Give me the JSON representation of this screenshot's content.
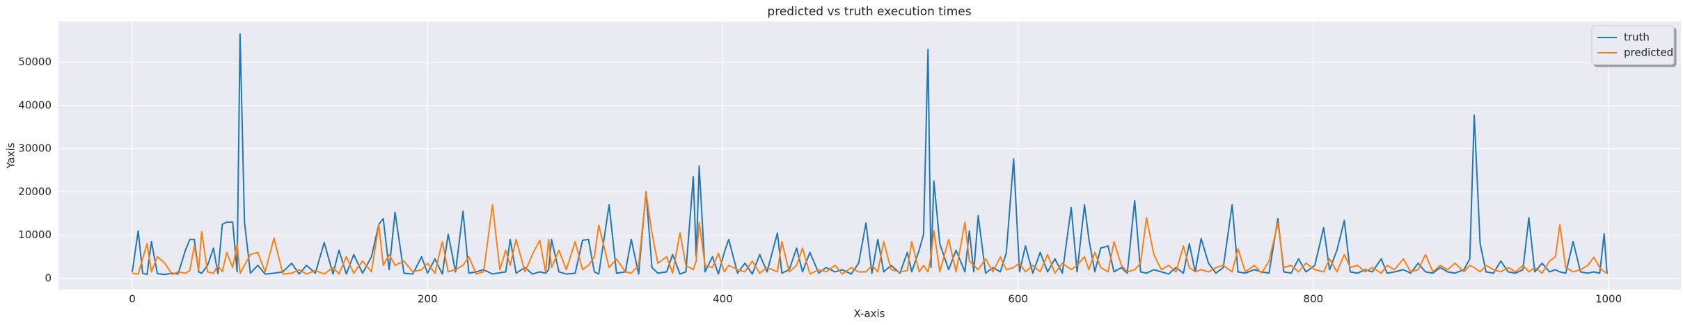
{
  "chart_data": {
    "type": "line",
    "title": "predicted vs truth execution times",
    "xlabel": "X-axis",
    "ylabel": "Yaxis",
    "xlim": [
      -50,
      1049
    ],
    "ylim": [
      -2600,
      59400
    ],
    "xticks": [
      0,
      200,
      400,
      600,
      800,
      1000
    ],
    "yticks": [
      0,
      10000,
      20000,
      30000,
      40000,
      50000
    ],
    "grid": true,
    "legend": "upper right",
    "x": [
      0,
      4,
      7,
      10,
      13,
      17,
      22,
      27,
      31,
      36,
      39,
      42,
      45,
      47,
      51,
      55,
      58,
      61,
      64,
      68,
      71,
      73,
      76,
      80,
      85,
      90,
      96,
      102,
      108,
      113,
      118,
      124,
      130,
      136,
      140,
      145,
      150,
      156,
      162,
      167,
      170,
      174,
      178,
      184,
      190,
      196,
      200,
      205,
      210,
      214,
      219,
      224,
      228,
      233,
      238,
      244,
      249,
      253,
      256,
      260,
      266,
      271,
      276,
      280,
      282,
      284,
      289,
      294,
      300,
      305,
      309,
      313,
      316,
      323,
      328,
      334,
      338,
      343,
      348,
      352,
      356,
      362,
      366,
      371,
      375,
      380,
      382,
      384,
      388,
      393,
      397,
      401,
      404,
      410,
      415,
      420,
      425,
      430,
      437,
      440,
      445,
      450,
      454,
      459,
      465,
      470,
      476,
      481,
      487,
      492,
      497,
      501,
      505,
      509,
      514,
      520,
      525,
      528,
      533,
      536,
      539,
      541,
      543,
      547,
      553,
      558,
      564,
      567,
      570,
      573,
      578,
      583,
      588,
      592,
      597,
      601,
      605,
      610,
      615,
      620,
      625,
      630,
      636,
      640,
      645,
      648,
      652,
      656,
      661,
      665,
      670,
      674,
      679,
      683,
      687,
      692,
      697,
      702,
      707,
      712,
      716,
      720,
      724,
      729,
      734,
      739,
      745,
      749,
      754,
      760,
      765,
      770,
      776,
      780,
      785,
      790,
      795,
      801,
      807,
      811,
      816,
      821,
      825,
      830,
      835,
      840,
      846,
      850,
      855,
      861,
      866,
      871,
      876,
      881,
      886,
      891,
      896,
      902,
      906,
      909,
      913,
      917,
      922,
      927,
      932,
      937,
      942,
      946,
      950,
      955,
      960,
      964,
      967,
      971,
      976,
      981,
      986,
      990,
      994,
      997,
      999
    ],
    "series": [
      {
        "name": "truth",
        "color": "#1f77b4",
        "values": [
          1500,
          11000,
          1200,
          900,
          8500,
          1100,
          900,
          1200,
          1000,
          6500,
          9000,
          9000,
          1500,
          1200,
          3000,
          7000,
          1100,
          12500,
          13000,
          13000,
          1500,
          56500,
          13000,
          1200,
          3000,
          1000,
          1200,
          1500,
          3500,
          1000,
          3000,
          1200,
          8300,
          1000,
          6500,
          1000,
          5500,
          1200,
          5000,
          12500,
          13800,
          2000,
          15300,
          1200,
          1000,
          5000,
          1200,
          4500,
          1000,
          10200,
          1500,
          15500,
          1200,
          1500,
          2000,
          1000,
          1300,
          1500,
          9000,
          1200,
          2500,
          1000,
          1500,
          1200,
          2000,
          9000,
          1500,
          1000,
          1200,
          8800,
          9000,
          1500,
          1000,
          17000,
          1200,
          1500,
          9000,
          1000,
          20000,
          2500,
          1200,
          1500,
          5500,
          1000,
          1500,
          23500,
          5000,
          26000,
          1500,
          5000,
          1000,
          6000,
          9000,
          1200,
          3500,
          1000,
          5500,
          1500,
          10500,
          1200,
          2000,
          7000,
          1500,
          6000,
          1200,
          2500,
          1500,
          2000,
          1000,
          3500,
          12800,
          1200,
          9000,
          1500,
          3000,
          1200,
          6000,
          1500,
          6500,
          10200,
          53000,
          2500,
          22500,
          8000,
          2000,
          6500,
          1500,
          11000,
          1500,
          14500,
          1200,
          2500,
          1500,
          5800,
          27600,
          1500,
          7500,
          1200,
          6000,
          1500,
          4500,
          1200,
          16400,
          1500,
          17000,
          9000,
          1500,
          7000,
          7500,
          1500,
          2500,
          1200,
          18000,
          1500,
          1200,
          2000,
          1500,
          1000,
          2500,
          1200,
          8000,
          1500,
          9200,
          3500,
          1200,
          2500,
          17000,
          1500,
          1200,
          2000,
          1500,
          1200,
          13800,
          1500,
          1200,
          4500,
          1500,
          3000,
          11700,
          2000,
          6500,
          13400,
          1500,
          1200,
          2000,
          1500,
          4500,
          1200,
          1500,
          2000,
          1200,
          3500,
          1500,
          1200,
          2500,
          1500,
          1200,
          2000,
          4500,
          37800,
          8000,
          1500,
          1200,
          4000,
          1500,
          1200,
          2000,
          14000,
          1500,
          3500,
          1500,
          2000,
          1500,
          1200,
          8500,
          1500,
          1200,
          1500,
          1200,
          10300,
          1000
        ]
      },
      {
        "name": "predicted",
        "color": "#ff7f0e",
        "values": [
          1200,
          1000,
          4500,
          8000,
          1500,
          5000,
          3500,
          900,
          1500,
          1200,
          1800,
          7500,
          2000,
          10800,
          1500,
          1200,
          3000,
          1500,
          6000,
          2500,
          8000,
          1200,
          3000,
          5500,
          6000,
          1500,
          9300,
          1000,
          1200,
          2000,
          1000,
          1800,
          1000,
          2500,
          1000,
          5000,
          1200,
          4000,
          1500,
          12400,
          3000,
          5500,
          3000,
          4000,
          1500,
          2000,
          3500,
          1200,
          8500,
          1500,
          2000,
          3000,
          5000,
          1000,
          1500,
          17000,
          2000,
          6500,
          3000,
          9000,
          1500,
          5500,
          8800,
          1500,
          9000,
          2500,
          6500,
          2000,
          8500,
          2000,
          3000,
          5000,
          12300,
          2500,
          4500,
          1500,
          1200,
          3000,
          19800,
          10500,
          3500,
          5000,
          1200,
          10500,
          3000,
          2000,
          4000,
          13000,
          3000,
          2500,
          5800,
          1500,
          3000,
          2000,
          1500,
          4000,
          1200,
          2500,
          1500,
          8500,
          1500,
          3000,
          7000,
          1000,
          2000,
          1500,
          3000,
          1000,
          2500,
          1500,
          1500,
          3000,
          1500,
          8500,
          2000,
          1500,
          1800,
          8500,
          1500,
          3000,
          1500,
          5000,
          11000,
          1500,
          9000,
          1500,
          13000,
          4000,
          3000,
          2000,
          4500,
          1500,
          5000,
          2000,
          2500,
          3500,
          1500,
          3000,
          1500,
          5500,
          1200,
          3500,
          2000,
          3000,
          5000,
          2000,
          6000,
          2500,
          1500,
          8500,
          3000,
          1500,
          2000,
          3500,
          14000,
          5500,
          2000,
          3000,
          1500,
          7500,
          2500,
          1500,
          2000,
          1500,
          2500,
          3000,
          1500,
          6800,
          1500,
          3000,
          1200,
          4000,
          12800,
          2500,
          3000,
          1500,
          3500,
          2000,
          1500,
          4500,
          1500,
          5500,
          2500,
          3000,
          1500,
          2500,
          1200,
          3000,
          2000,
          4500,
          1500,
          2000,
          5500,
          1500,
          3000,
          2000,
          3500,
          1500,
          3000,
          2500,
          1500,
          3000,
          2000,
          1500,
          2500,
          1500,
          3000,
          1500,
          2500,
          1200,
          4000,
          5000,
          12400,
          2500,
          1500,
          2000,
          3000,
          4900,
          2500,
          1500,
          1200
        ]
      }
    ]
  }
}
